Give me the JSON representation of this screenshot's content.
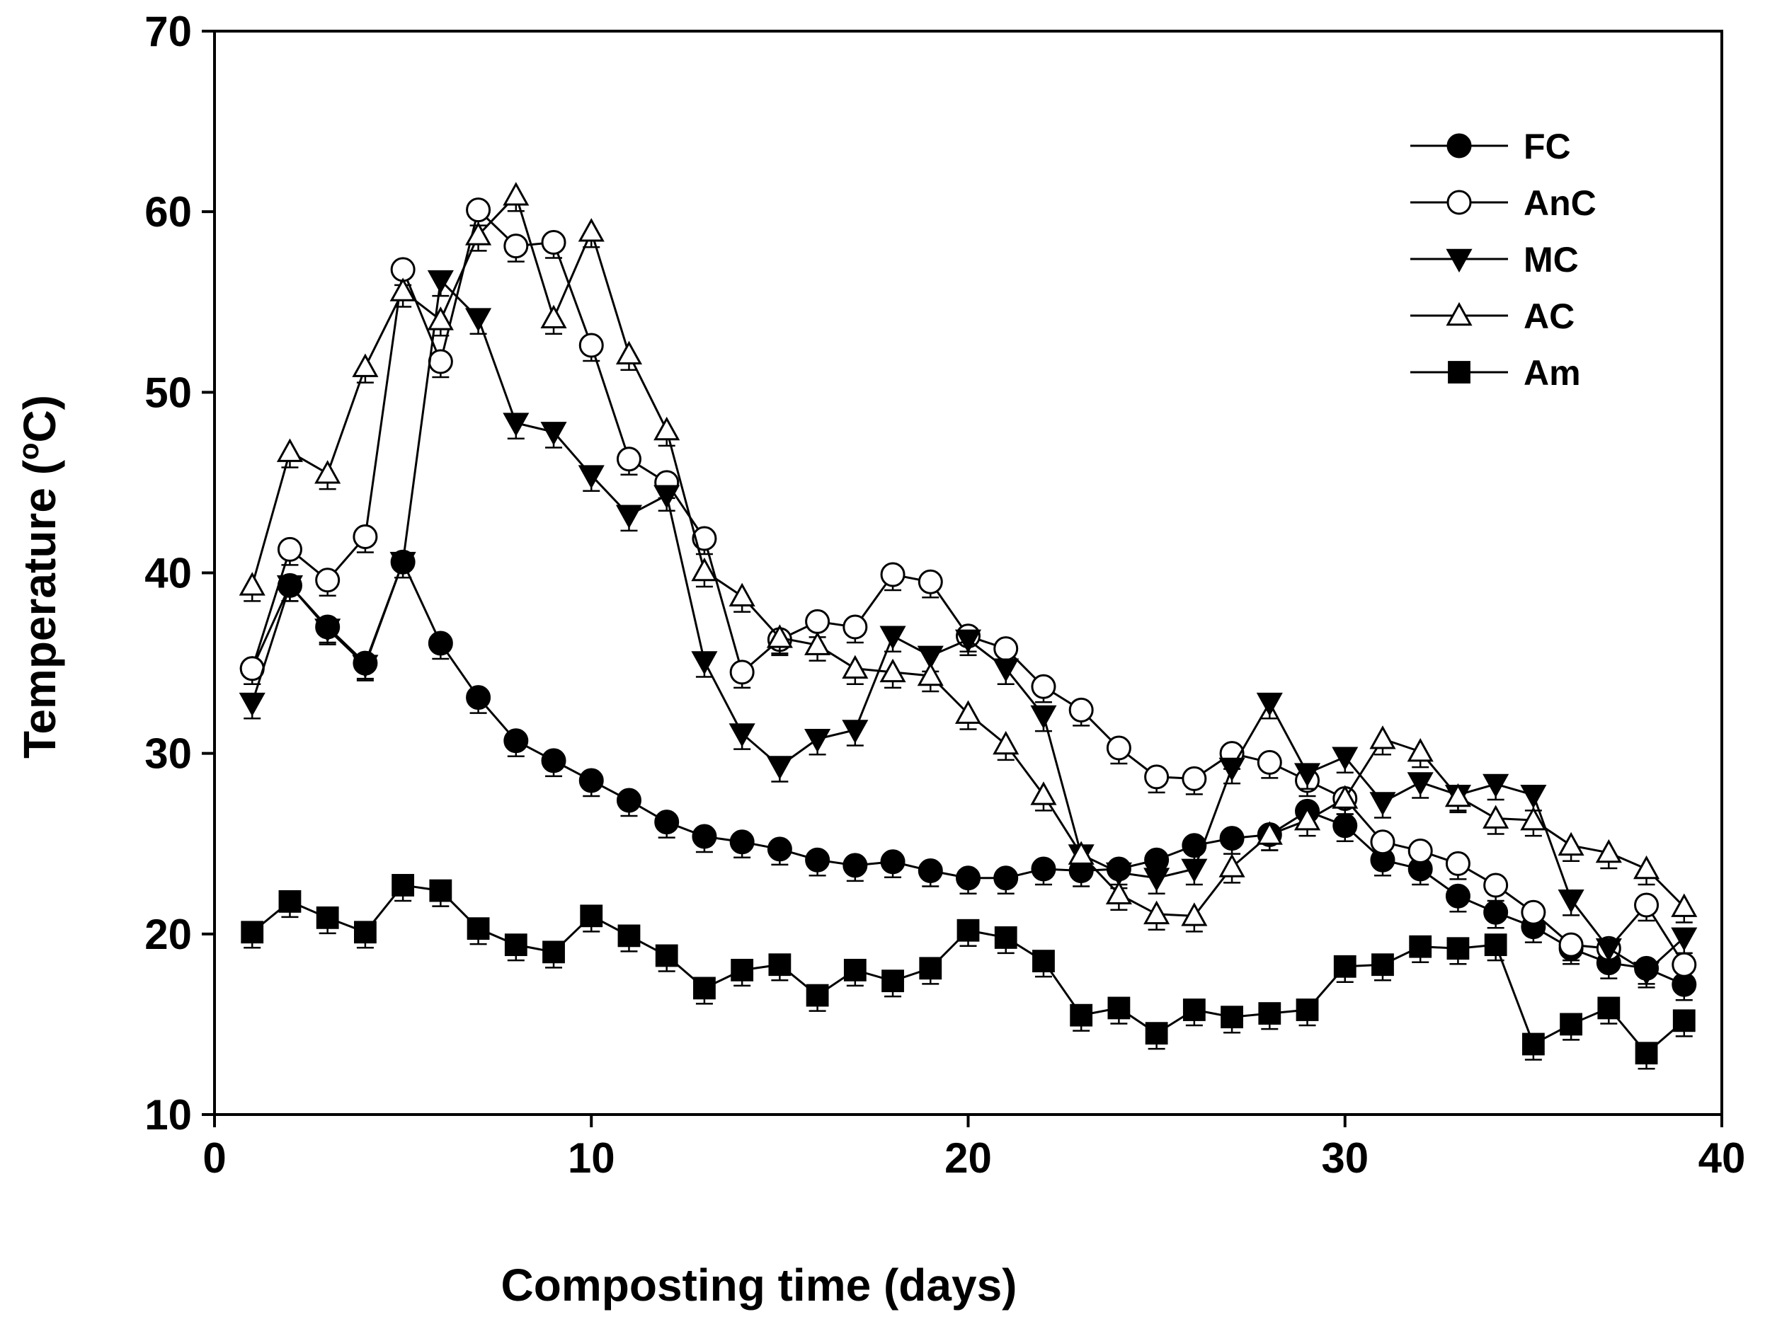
{
  "chart_data": {
    "type": "line",
    "xlabel": "Composting time (days)",
    "ylabel_main": "Temperature (",
    "ylabel_sup": "o",
    "ylabel_end": "C)",
    "xlim": [
      0,
      40
    ],
    "ylim": [
      10,
      70
    ],
    "x_ticks": [
      0,
      10,
      20,
      30,
      40
    ],
    "y_ticks": [
      10,
      20,
      30,
      40,
      50,
      60,
      70
    ],
    "grid": false,
    "legend_position": "top-right",
    "x": [
      1,
      2,
      3,
      4,
      5,
      6,
      7,
      8,
      9,
      10,
      11,
      12,
      13,
      14,
      15,
      16,
      17,
      18,
      19,
      20,
      21,
      22,
      23,
      24,
      25,
      26,
      27,
      28,
      29,
      30,
      31,
      32,
      33,
      34,
      35,
      36,
      37,
      38,
      39
    ],
    "series": [
      {
        "name": "FC",
        "marker": "circle-filled",
        "values": [
          34.7,
          39.3,
          37.0,
          35.0,
          40.6,
          36.1,
          33.1,
          30.7,
          29.6,
          28.5,
          27.4,
          26.2,
          25.4,
          25.1,
          24.7,
          24.1,
          23.8,
          24.0,
          23.5,
          23.1,
          23.1,
          23.6,
          23.5,
          23.6,
          24.1,
          24.9,
          25.3,
          25.5,
          26.8,
          26.0,
          24.1,
          23.6,
          22.1,
          21.2,
          20.4,
          19.2,
          18.4,
          18.1,
          17.2
        ]
      },
      {
        "name": "AnC",
        "marker": "circle-open",
        "values": [
          34.7,
          41.3,
          39.6,
          42.0,
          56.8,
          51.7,
          60.1,
          58.1,
          58.3,
          52.6,
          46.3,
          45.0,
          41.9,
          34.5,
          36.3,
          37.3,
          37.0,
          39.9,
          39.5,
          36.5,
          35.8,
          33.7,
          32.4,
          30.3,
          28.7,
          28.6,
          30.0,
          29.5,
          28.5,
          27.5,
          25.1,
          24.6,
          23.9,
          22.7,
          21.2,
          19.4,
          19.2,
          21.6,
          18.3
        ]
      },
      {
        "name": "MC",
        "marker": "triangle-down-filled",
        "values": [
          32.8,
          39.3,
          36.9,
          34.9,
          40.6,
          56.2,
          54.1,
          48.3,
          47.8,
          45.4,
          43.2,
          44.3,
          35.1,
          31.1,
          29.3,
          30.8,
          31.3,
          36.5,
          35.4,
          36.3,
          34.7,
          32.1,
          24.4,
          23.4,
          23.1,
          23.6,
          29.2,
          32.8,
          28.9,
          29.8,
          27.3,
          28.4,
          27.7,
          28.3,
          27.7,
          21.9,
          19.2,
          17.9,
          19.8
        ]
      },
      {
        "name": "AC",
        "marker": "triangle-up-open",
        "values": [
          39.3,
          46.7,
          45.5,
          51.4,
          55.6,
          54.0,
          58.7,
          60.9,
          54.1,
          58.9,
          52.1,
          47.9,
          40.1,
          38.7,
          36.4,
          36.0,
          34.7,
          34.5,
          34.3,
          32.2,
          30.5,
          27.7,
          24.4,
          22.2,
          21.1,
          21.0,
          23.7,
          25.5,
          26.3,
          27.5,
          30.8,
          30.1,
          27.6,
          26.4,
          26.3,
          24.9,
          24.5,
          23.6,
          21.5
        ]
      },
      {
        "name": "Am",
        "marker": "square-filled",
        "values": [
          20.1,
          21.8,
          20.9,
          20.1,
          22.7,
          22.4,
          20.3,
          19.4,
          19.0,
          21.0,
          19.9,
          18.8,
          17.0,
          18.0,
          18.3,
          16.6,
          18.0,
          17.4,
          18.1,
          20.2,
          19.8,
          18.5,
          15.5,
          15.9,
          14.5,
          15.8,
          15.4,
          15.6,
          15.8,
          18.2,
          18.3,
          19.3,
          19.2,
          19.4,
          13.9,
          15.0,
          15.9,
          13.4,
          15.2
        ]
      }
    ]
  }
}
